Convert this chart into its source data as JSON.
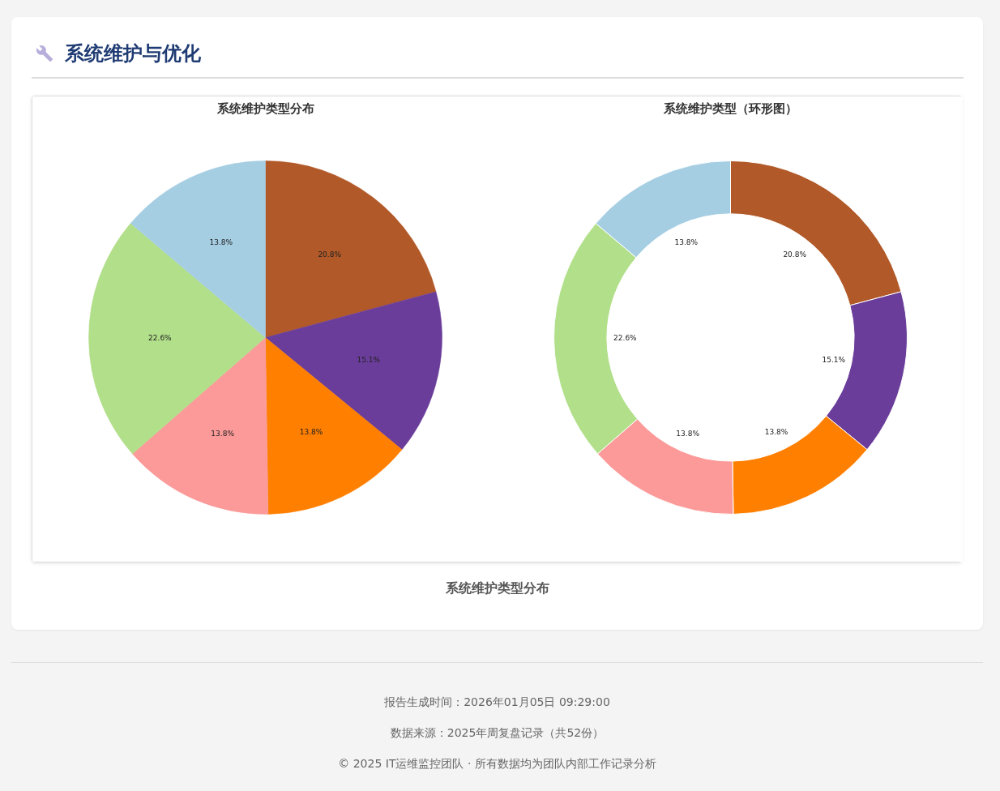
{
  "chart_data": [
    {
      "type": "pie",
      "title": "系统维护类型分布",
      "categories": [
        null,
        null,
        null,
        null,
        null,
        null
      ],
      "values": [
        20.8,
        15.1,
        13.8,
        13.8,
        22.6,
        13.8
      ],
      "colors": [
        "#b15928",
        "#6a3d9a",
        "#ff7f00",
        "#fb9a99",
        "#b2df8a",
        "#a6cee3"
      ],
      "value_labels": [
        "20.8%",
        "15.1%",
        "13.8%",
        "13.8%",
        "22.6%",
        "13.8%"
      ],
      "annotations": [
        "系统维护与优化"
      ]
    },
    {
      "type": "donut",
      "title": "系统维护类型（环形图）",
      "categories": [
        null,
        null,
        null,
        null,
        null,
        null
      ],
      "values": [
        20.8,
        15.1,
        13.8,
        13.8,
        22.6,
        13.8
      ],
      "colors": [
        "#b15928",
        "#6a3d9a",
        "#ff7f00",
        "#fb9a99",
        "#b2df8a",
        "#a6cee3"
      ],
      "value_labels": [
        "20.8%",
        "15.1%",
        "13.8%",
        "13.8%",
        "22.6%",
        "13.8%"
      ],
      "annotations": [
        "系统维护类型分布",
        "报告生成时间：2026年01月05日 09:29:00",
        "数据来源：2025年周复盘记录（共52份）",
        "© 2025 IT运维监控团队 · 所有数据均为团队内部工作记录分析"
      ]
    }
  ]
}
